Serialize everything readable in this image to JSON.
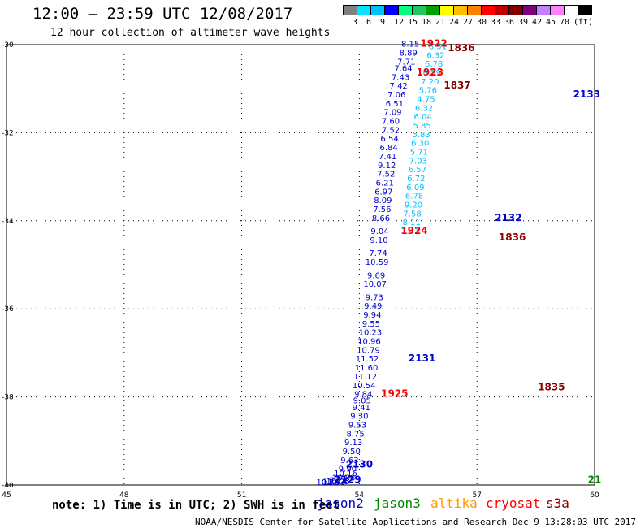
{
  "header": {
    "title": "12:00 – 23:59 UTC 12/08/2017",
    "subtitle": "12 hour collection of altimeter wave heights"
  },
  "legend": {
    "colors": [
      "#808080",
      "#00e5ff",
      "#00bfff",
      "#0000ff",
      "#00ff7f",
      "#22c55e",
      "#00a000",
      "#ffff00",
      "#ffbf00",
      "#ff8000",
      "#ff0000",
      "#c00000",
      "#800000",
      "#800080",
      "#c080ff",
      "#ff80ff",
      "#ffffff",
      "#000000"
    ],
    "labels": [
      "3",
      "6",
      "9",
      "12",
      "15",
      "18",
      "21",
      "24",
      "27",
      "30",
      "33",
      "36",
      "39",
      "42",
      "45",
      "70",
      "(ft)"
    ]
  },
  "note": "note: 1) Time is in UTC; 2) SWH is in feet",
  "satellites": [
    {
      "name": "jason2",
      "color": "#0000cc"
    },
    {
      "name": "jason3",
      "color": "#008800"
    },
    {
      "name": "altika",
      "color": "#ff9900"
    },
    {
      "name": "cryosat",
      "color": "#ff0000"
    },
    {
      "name": "s3a",
      "color": "#880000"
    }
  ],
  "footer": "NOAA/NESDIS Center for Satellite Applications and Research   Dec  9 13:28:03 UTC 2017",
  "chart_data": {
    "type": "scatter",
    "xlabel": "",
    "ylabel": "",
    "x_ticks": [
      45,
      48,
      51,
      54,
      57,
      60
    ],
    "y_ticks": [
      -30,
      -32,
      -34,
      -36,
      -38,
      -40
    ],
    "xlim": [
      45,
      60
    ],
    "ylim": [
      -40,
      -30
    ],
    "grid": true,
    "time_labels": [
      {
        "text": "1922",
        "x": 55.9,
        "y": -30.05,
        "color": "#ff0000"
      },
      {
        "text": "1836",
        "x": 56.6,
        "y": -30.15,
        "color": "#880000"
      },
      {
        "text": "1923",
        "x": 55.8,
        "y": -30.7,
        "color": "#ff0000"
      },
      {
        "text": "1837",
        "x": 56.5,
        "y": -31.0,
        "color": "#880000"
      },
      {
        "text": "2133",
        "x": 59.8,
        "y": -31.2,
        "color": "#0000cc"
      },
      {
        "text": "2132",
        "x": 57.8,
        "y": -34.0,
        "color": "#0000cc"
      },
      {
        "text": "1924",
        "x": 55.4,
        "y": -34.3,
        "color": "#ff0000"
      },
      {
        "text": "1836",
        "x": 57.9,
        "y": -34.45,
        "color": "#880000"
      },
      {
        "text": "2131",
        "x": 55.6,
        "y": -37.2,
        "color": "#0000cc"
      },
      {
        "text": "1835",
        "x": 58.9,
        "y": -37.85,
        "color": "#880000"
      },
      {
        "text": "1925",
        "x": 54.9,
        "y": -38.0,
        "color": "#ff0000"
      },
      {
        "text": "2130",
        "x": 54.0,
        "y": -39.6,
        "color": "#0000cc"
      },
      {
        "text": "2129",
        "x": 53.7,
        "y": -39.95,
        "color": "#0000cc"
      },
      {
        "text": "21",
        "x": 60.0,
        "y": -39.95,
        "color": "#008800"
      }
    ],
    "series": [
      {
        "name": "track-a",
        "x": [
          55.3,
          55.25,
          55.2,
          55.12,
          55.05,
          55.0,
          54.95,
          54.9,
          54.85,
          54.8,
          54.8,
          54.77,
          54.75,
          54.72,
          54.7,
          54.68,
          54.65,
          54.62,
          54.6,
          54.58,
          54.55,
          54.52,
          54.5,
          54.48,
          54.45,
          54.43,
          54.4,
          54.38,
          54.35,
          54.33,
          54.3,
          54.28,
          54.25,
          54.23,
          54.2,
          54.18,
          54.15,
          54.12,
          54.1,
          54.07,
          54.05,
          54.0,
          53.95,
          53.9,
          53.85,
          53.8,
          53.75,
          53.7,
          53.65,
          53.6,
          53.55,
          53.45,
          53.35,
          53.2
        ],
        "y": [
          -30.05,
          -30.25,
          -30.45,
          -30.6,
          -30.8,
          -31.0,
          -31.2,
          -31.4,
          -31.6,
          -31.8,
          -32.0,
          -32.2,
          -32.4,
          -32.6,
          -32.8,
          -33.0,
          -33.2,
          -33.4,
          -33.6,
          -33.8,
          -34.0,
          -34.3,
          -34.5,
          -34.8,
          -35.0,
          -35.3,
          -35.5,
          -35.8,
          -36.0,
          -36.2,
          -36.4,
          -36.6,
          -36.8,
          -37.0,
          -37.2,
          -37.4,
          -37.6,
          -37.8,
          -38.0,
          -38.15,
          -38.3,
          -38.5,
          -38.7,
          -38.9,
          -39.1,
          -39.3,
          -39.5,
          -39.7,
          -39.8,
          -39.9,
          -39.95,
          -39.98,
          -39.99,
          -40.0
        ],
        "labels": [
          "8.15",
          "8.89",
          "7.71",
          "7.64",
          "7.43",
          "7.42",
          "7.06",
          "6.51",
          "7.09",
          "7.60",
          "7.52",
          "6.54",
          "6.84",
          "7.41",
          "9.12",
          "7.52",
          "6.21",
          "6.97",
          "8.09",
          "7.56",
          "8.66",
          "9.04",
          "9.10",
          "7.74",
          "10.59",
          "9.69",
          "10.07",
          "9.73",
          "9.49",
          "9.94",
          "9.55",
          "10.23",
          "10.96",
          "10.79",
          "11.52",
          "11.60",
          "11.12",
          "10.54",
          "9.84",
          "9.05",
          "9.41",
          "9.30",
          "9.53",
          "8.75",
          "9.13",
          "9.50",
          "9.63",
          "9.90",
          "10.16",
          "10.88",
          "11.12",
          "10.05",
          "11.33",
          "10.16"
        ],
        "color": "#0000cc"
      },
      {
        "name": "track-b",
        "x": [
          56.0,
          55.95,
          55.9,
          55.85,
          55.8,
          55.75,
          55.7,
          55.65,
          55.62,
          55.6,
          55.58,
          55.55,
          55.52,
          55.5,
          55.48,
          55.45,
          55.43,
          55.4,
          55.38,
          55.35,
          55.33,
          55.3
        ],
        "y": [
          -30.1,
          -30.3,
          -30.5,
          -30.7,
          -30.9,
          -31.1,
          -31.3,
          -31.5,
          -31.7,
          -31.9,
          -32.1,
          -32.3,
          -32.5,
          -32.7,
          -32.9,
          -33.1,
          -33.3,
          -33.5,
          -33.7,
          -33.9,
          -34.1,
          -34.3
        ],
        "labels": [
          "8.51",
          "6.32",
          "6.78",
          "6.59",
          "7.20",
          "5.76",
          "4.75",
          "6.32",
          "6.04",
          "5.85",
          "5.83",
          "6.30",
          "5.71",
          "7.03",
          "6.57",
          "6.72",
          "6.09",
          "6.78",
          "9.20",
          "7.58",
          "8.11",
          "7.41"
        ],
        "color": "#00bfff"
      }
    ]
  }
}
